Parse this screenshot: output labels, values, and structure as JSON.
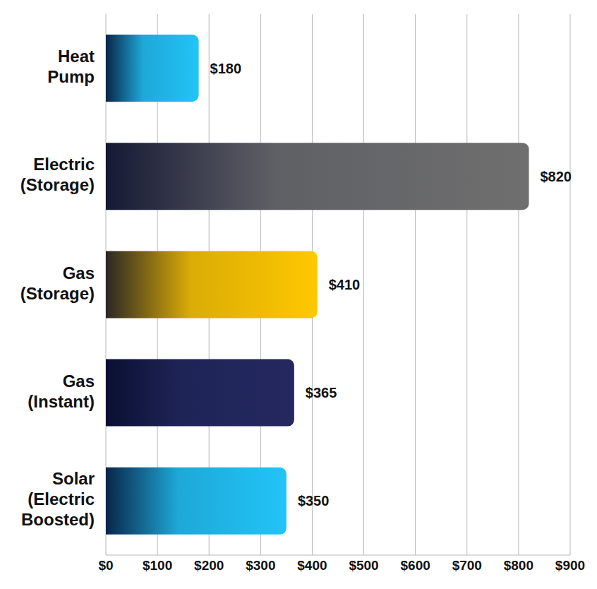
{
  "chart_data": {
    "type": "bar",
    "orientation": "horizontal",
    "categories": [
      "Heat Pump",
      "Electric (Storage)",
      "Gas (Storage)",
      "Gas (Instant)",
      "Solar (Electric Boosted)"
    ],
    "values": [
      180,
      820,
      410,
      365,
      350
    ],
    "value_labels": [
      "$180",
      "$820",
      "$410",
      "$365",
      "$350"
    ],
    "data_labels": true,
    "colors": [
      "#22c4f7",
      "#6f6f6f",
      "#ffc800",
      "#24285f"
    ],
    "xlim": [
      0,
      900
    ],
    "xticks": [
      {
        "value": 0,
        "label": "$0"
      },
      {
        "value": 100,
        "label": "$100"
      },
      {
        "value": 200,
        "label": "$200"
      },
      {
        "value": 300,
        "label": "$300"
      },
      {
        "value": 400,
        "label": "$400"
      },
      {
        "value": 500,
        "label": "$500"
      },
      {
        "value": 600,
        "label": "$600"
      },
      {
        "value": 700,
        "label": "$700"
      },
      {
        "value": 800,
        "label": "$800"
      },
      {
        "value": 900,
        "label": "$900"
      }
    ],
    "grid": true
  }
}
